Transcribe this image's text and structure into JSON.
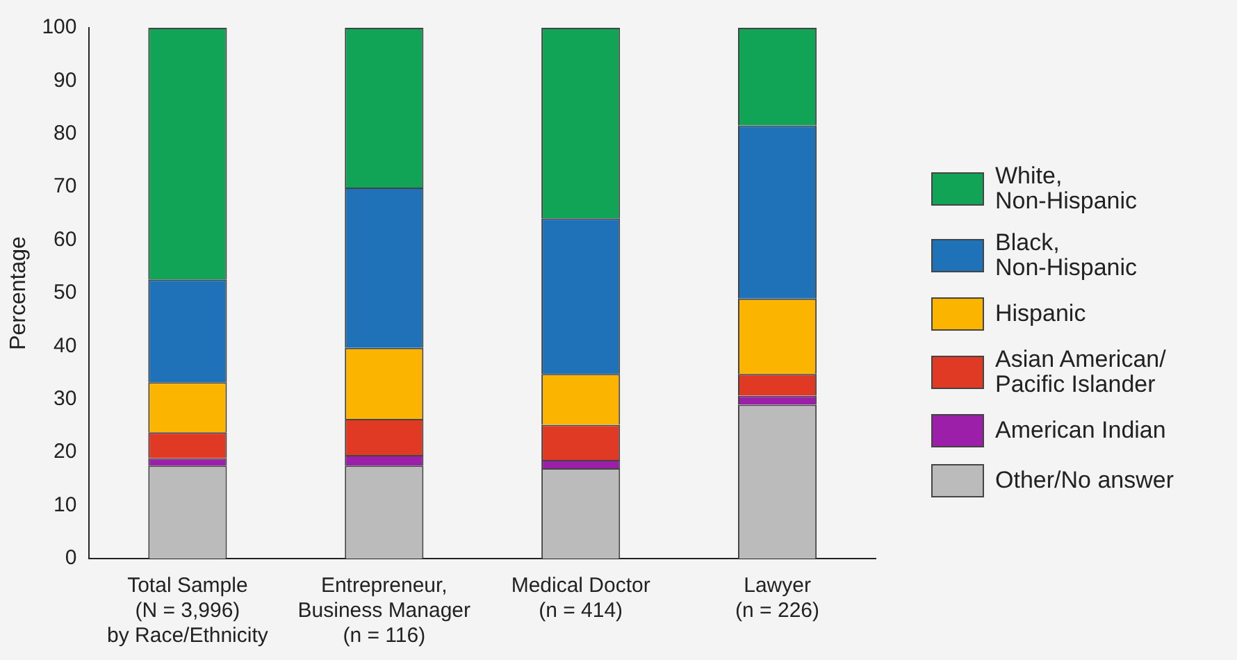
{
  "chart_data": {
    "type": "bar",
    "stacked": true,
    "ylabel": "Percentage",
    "categories": [
      "Total Sample\n(N = 3,996)\nby Race/Ethnicity",
      "Entrepreneur,\nBusiness Manager\n(n = 116)",
      "Medical Doctor\n(n = 414)",
      "Lawyer\n(n = 226)"
    ],
    "series": [
      {
        "name": "Other/No answer",
        "color": "#bbbbbb",
        "values": [
          17.5,
          17.5,
          17.0,
          29.0
        ]
      },
      {
        "name": "American Indian",
        "color": "#9b1fa8",
        "values": [
          1.4,
          2.0,
          1.6,
          1.7
        ]
      },
      {
        "name": "Asian American/\nPacific Islander",
        "color": "#e03a24",
        "values": [
          4.9,
          6.8,
          6.6,
          4.1
        ]
      },
      {
        "name": "Hispanic",
        "color": "#fbb400",
        "values": [
          9.4,
          13.4,
          9.6,
          14.2
        ]
      },
      {
        "name": "Black,\nNon-Hispanic",
        "color": "#1f72b8",
        "values": [
          19.4,
          30.2,
          29.3,
          32.6
        ]
      },
      {
        "name": "White,\nNon-Hispanic",
        "color": "#12a456",
        "values": [
          47.4,
          30.1,
          35.9,
          18.4
        ]
      }
    ],
    "ylim": [
      0,
      100
    ],
    "yticks": [
      0,
      10,
      20,
      30,
      40,
      50,
      60,
      70,
      80,
      90,
      100
    ],
    "grid": false,
    "legend": "right"
  }
}
